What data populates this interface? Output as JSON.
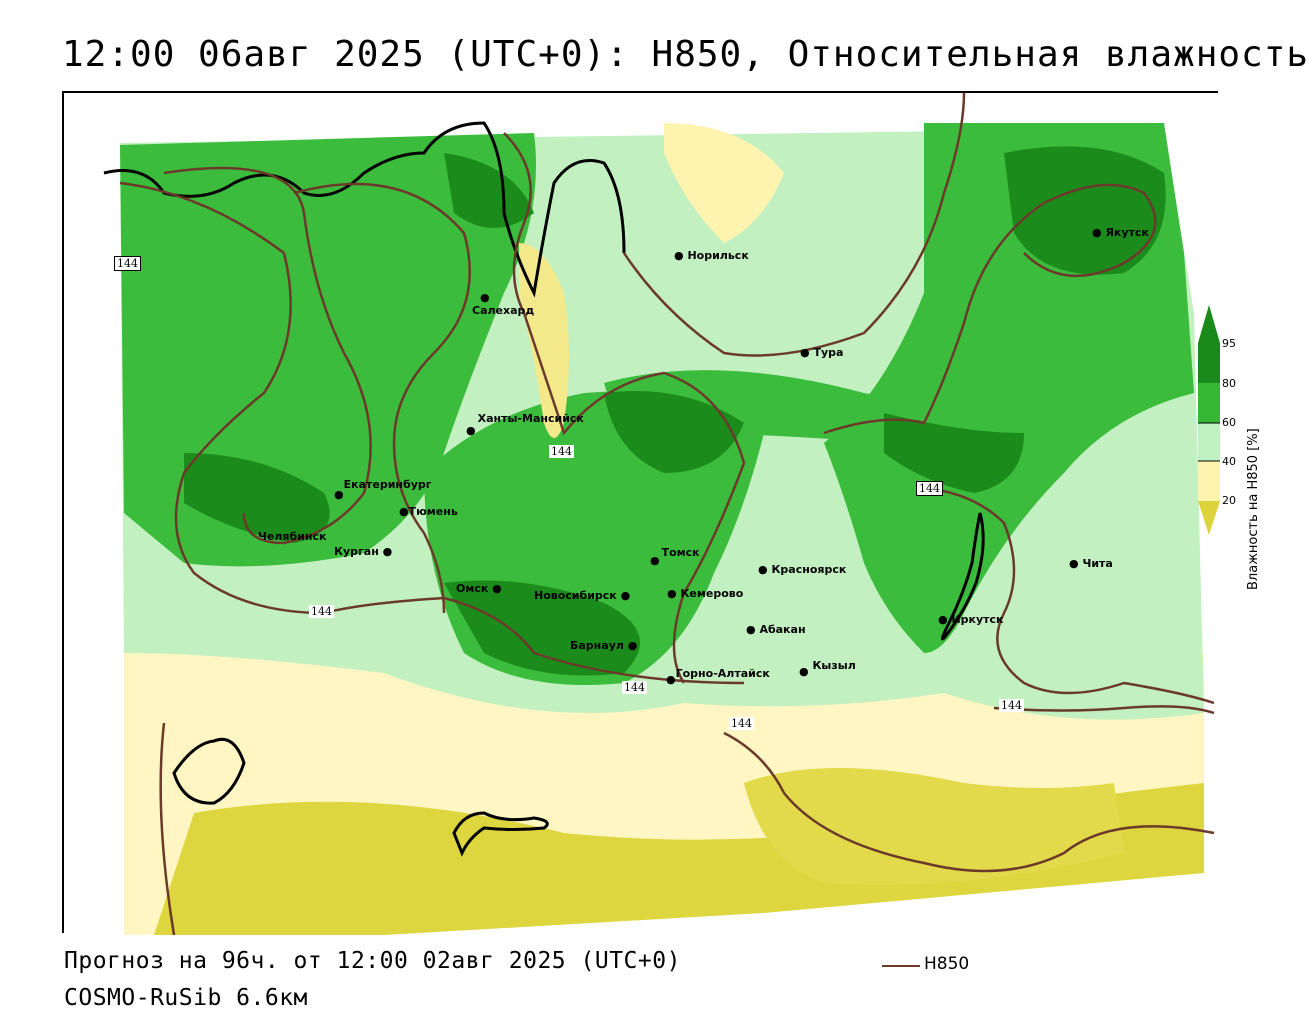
{
  "title": "12:00 06авг 2025 (UTC+0): H850, Относительная влажность",
  "footer": {
    "forecast": "Прогноз на 96ч. от 12:00 02авг 2025 (UTC+0)",
    "model": "COSMO-RuSib 6.6км",
    "line_legend": "H850"
  },
  "legend": {
    "title": "Влажность на H850 [%]",
    "ticks": [
      "95",
      "80",
      "60",
      "40",
      "20"
    ],
    "colors": {
      "95": "#1a8a1a",
      "80": "#36b836",
      "60": "#bff0bf",
      "40": "#ffffff",
      "20": "#fff3b0",
      "low": "#dcd43a"
    }
  },
  "cities": [
    {
      "name": "Норильск"
    },
    {
      "name": "Якутск"
    },
    {
      "name": "Салехард"
    },
    {
      "name": "Тура"
    },
    {
      "name": "Ханты-Мансийск"
    },
    {
      "name": "Екатеринбург"
    },
    {
      "name": "Тюмень"
    },
    {
      "name": "Челябинск"
    },
    {
      "name": "Курган"
    },
    {
      "name": "Омск"
    },
    {
      "name": "Новосибирск"
    },
    {
      "name": "Томск"
    },
    {
      "name": "Кемерово"
    },
    {
      "name": "Красноярск"
    },
    {
      "name": "Абакан"
    },
    {
      "name": "Барнаул"
    },
    {
      "name": "Горно-Алтайск"
    },
    {
      "name": "Кызыл"
    },
    {
      "name": "Иркутск"
    },
    {
      "name": "Чита"
    }
  ],
  "isoline_labels": [
    "144",
    "144",
    "144",
    "144",
    "144",
    "144",
    "144"
  ],
  "colors": {
    "isoline": "#6b3a2a",
    "frame": "#000000"
  }
}
